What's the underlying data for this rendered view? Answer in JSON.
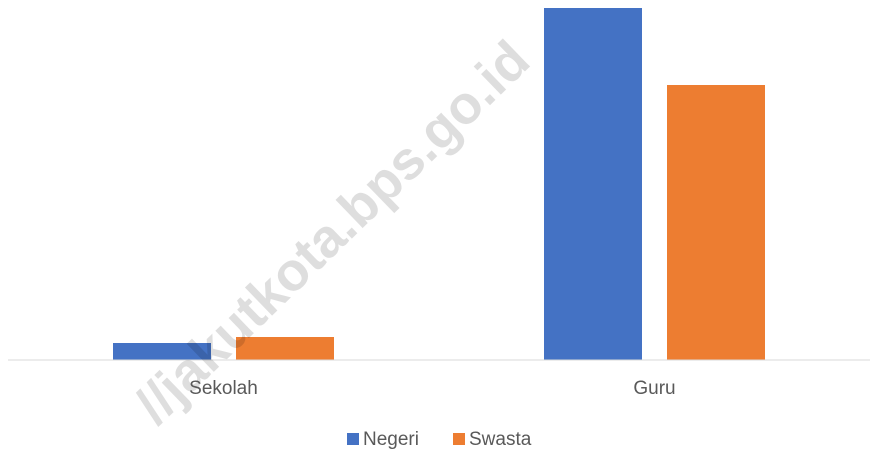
{
  "chart_data": {
    "type": "bar",
    "categories": [
      "Sekolah",
      "Guru"
    ],
    "series": [
      {
        "name": "Negeri",
        "color": "#4472c4",
        "values": [
          17,
          352
        ]
      },
      {
        "name": "Swasta",
        "color": "#ed7d31",
        "values": [
          23,
          275
        ]
      }
    ],
    "ylim": [
      0,
      352
    ],
    "legend": "bottom",
    "watermark": "//jakutkota.bps.go.id"
  }
}
